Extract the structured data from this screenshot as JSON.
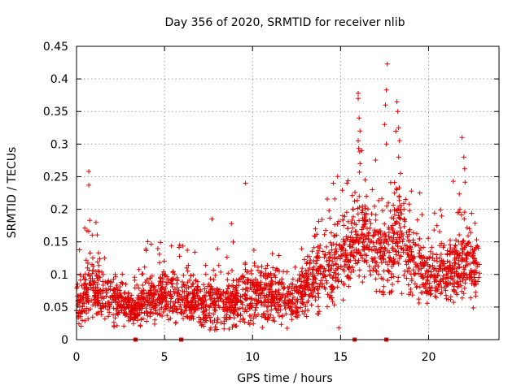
{
  "chart_data": {
    "type": "scatter",
    "title": "Day 356 of 2020, SRMTID for receiver nlib",
    "xlabel": "GPS time / hours",
    "ylabel": "SRMTID / TECUs",
    "xlim": [
      0,
      24
    ],
    "ylim": [
      0,
      0.45
    ],
    "xticks": [
      0,
      5,
      10,
      15,
      20
    ],
    "xtick_labels": [
      "0",
      "5",
      "10",
      "15",
      "20"
    ],
    "yticks": [
      0,
      0.05,
      0.1,
      0.15,
      0.2,
      0.25,
      0.3,
      0.35,
      0.4,
      0.45
    ],
    "ytick_labels": [
      "0",
      "0.05",
      "0.1",
      "0.15",
      "0.2",
      "0.25",
      "0.3",
      "0.35",
      "0.4",
      "0.45"
    ],
    "grid": true,
    "marker": "+",
    "color": "#e00000",
    "time_range_hours": [
      0,
      22.9
    ],
    "gap_markers_hours": [
      3.35,
      5.95,
      15.8,
      17.6
    ],
    "envelope": [
      {
        "x": 0.0,
        "base": 0.055,
        "spread": 0.03
      },
      {
        "x": 0.5,
        "base": 0.065,
        "spread": 0.04
      },
      {
        "x": 0.8,
        "base": 0.08,
        "spread": 0.05
      },
      {
        "x": 1.5,
        "base": 0.065,
        "spread": 0.035
      },
      {
        "x": 2.5,
        "base": 0.055,
        "spread": 0.03
      },
      {
        "x": 3.3,
        "base": 0.045,
        "spread": 0.02
      },
      {
        "x": 4.0,
        "base": 0.065,
        "spread": 0.035
      },
      {
        "x": 5.0,
        "base": 0.07,
        "spread": 0.035
      },
      {
        "x": 6.0,
        "base": 0.06,
        "spread": 0.03
      },
      {
        "x": 7.5,
        "base": 0.055,
        "spread": 0.035
      },
      {
        "x": 9.0,
        "base": 0.06,
        "spread": 0.035
      },
      {
        "x": 10.0,
        "base": 0.075,
        "spread": 0.04
      },
      {
        "x": 11.5,
        "base": 0.065,
        "spread": 0.035
      },
      {
        "x": 12.7,
        "base": 0.06,
        "spread": 0.03
      },
      {
        "x": 13.5,
        "base": 0.1,
        "spread": 0.045
      },
      {
        "x": 14.5,
        "base": 0.11,
        "spread": 0.05
      },
      {
        "x": 15.5,
        "base": 0.14,
        "spread": 0.05
      },
      {
        "x": 16.2,
        "base": 0.17,
        "spread": 0.07
      },
      {
        "x": 17.0,
        "base": 0.13,
        "spread": 0.05
      },
      {
        "x": 17.8,
        "base": 0.13,
        "spread": 0.06
      },
      {
        "x": 18.3,
        "base": 0.17,
        "spread": 0.08
      },
      {
        "x": 19.0,
        "base": 0.12,
        "spread": 0.05
      },
      {
        "x": 20.0,
        "base": 0.1,
        "spread": 0.04
      },
      {
        "x": 21.0,
        "base": 0.1,
        "spread": 0.04
      },
      {
        "x": 22.0,
        "base": 0.12,
        "spread": 0.05
      },
      {
        "x": 22.9,
        "base": 0.09,
        "spread": 0.04
      }
    ],
    "highlight_points": [
      {
        "x": 0.7,
        "y": 0.258
      },
      {
        "x": 0.7,
        "y": 0.237
      },
      {
        "x": 0.75,
        "y": 0.183
      },
      {
        "x": 0.6,
        "y": 0.167
      },
      {
        "x": 7.7,
        "y": 0.185
      },
      {
        "x": 8.8,
        "y": 0.178
      },
      {
        "x": 9.6,
        "y": 0.24
      },
      {
        "x": 14.9,
        "y": 0.018
      },
      {
        "x": 16.0,
        "y": 0.378
      },
      {
        "x": 16.0,
        "y": 0.37
      },
      {
        "x": 16.05,
        "y": 0.34
      },
      {
        "x": 16.1,
        "y": 0.32
      },
      {
        "x": 16.0,
        "y": 0.305
      },
      {
        "x": 16.2,
        "y": 0.29
      },
      {
        "x": 16.1,
        "y": 0.27
      },
      {
        "x": 16.4,
        "y": 0.245
      },
      {
        "x": 16.8,
        "y": 0.23
      },
      {
        "x": 17.65,
        "y": 0.423
      },
      {
        "x": 17.6,
        "y": 0.383
      },
      {
        "x": 17.55,
        "y": 0.36
      },
      {
        "x": 17.5,
        "y": 0.33
      },
      {
        "x": 17.6,
        "y": 0.3
      },
      {
        "x": 18.2,
        "y": 0.365
      },
      {
        "x": 18.25,
        "y": 0.35
      },
      {
        "x": 18.3,
        "y": 0.325
      },
      {
        "x": 18.35,
        "y": 0.305
      },
      {
        "x": 18.3,
        "y": 0.28
      },
      {
        "x": 18.4,
        "y": 0.255
      },
      {
        "x": 18.2,
        "y": 0.23
      },
      {
        "x": 18.7,
        "y": 0.215
      },
      {
        "x": 18.6,
        "y": 0.2
      },
      {
        "x": 21.9,
        "y": 0.31
      },
      {
        "x": 22.0,
        "y": 0.28
      },
      {
        "x": 22.05,
        "y": 0.262
      },
      {
        "x": 21.4,
        "y": 0.243
      },
      {
        "x": 19.5,
        "y": 0.225
      }
    ]
  }
}
